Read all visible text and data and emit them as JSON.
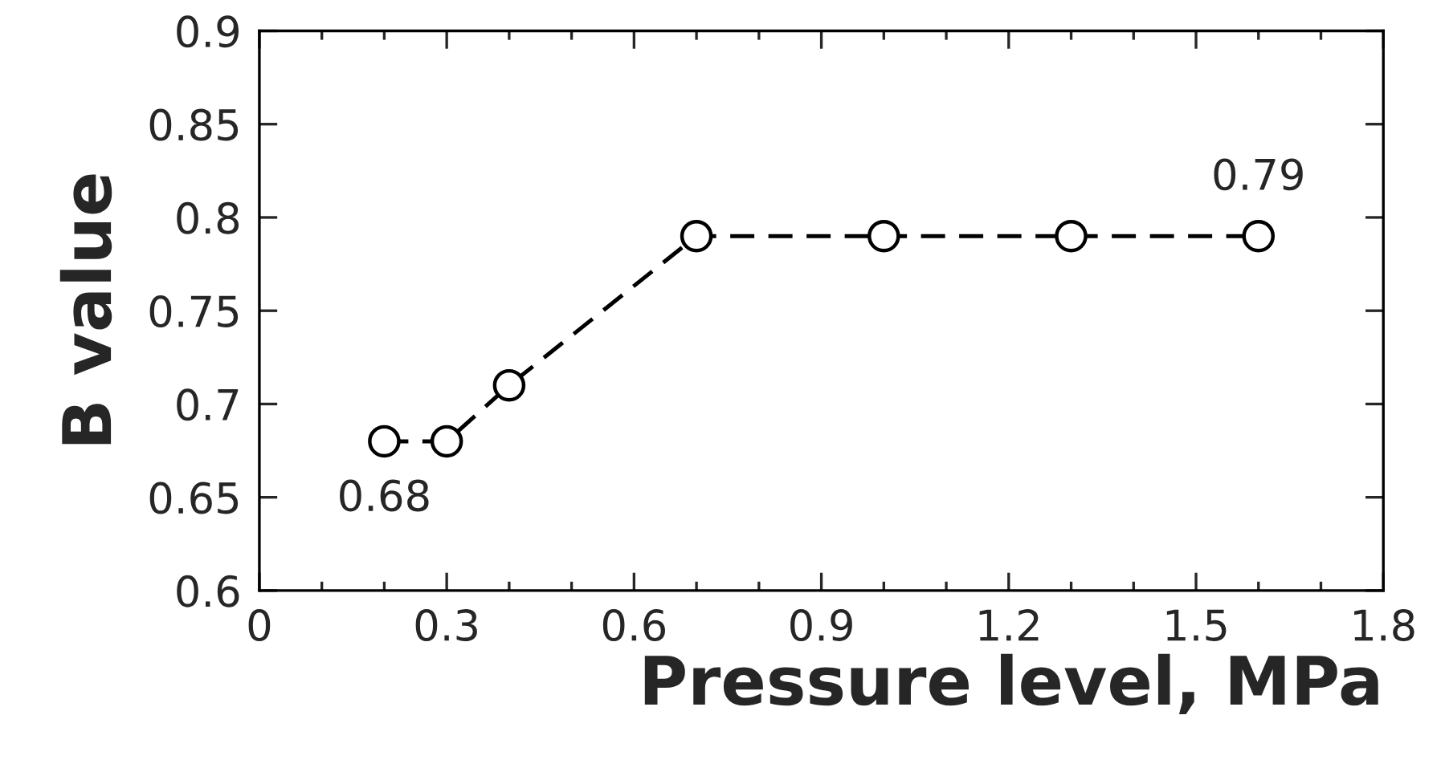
{
  "chart_data": {
    "type": "line",
    "xlabel": "Pressure level, MPa",
    "ylabel": "B value",
    "x": [
      0.2,
      0.3,
      0.4,
      0.7,
      1.0,
      1.3,
      1.6
    ],
    "series": [
      {
        "color": "#000000",
        "values": [
          0.68,
          0.68,
          0.71,
          0.79,
          0.79,
          0.79,
          0.79
        ]
      }
    ],
    "marker": "circle",
    "line_style": "dashed",
    "grid": false,
    "legend": false,
    "xlim": [
      0,
      1.8
    ],
    "ylim": [
      0.6,
      0.9
    ],
    "xticks": [
      0,
      {
        "value": 0.1,
        "label": null
      },
      {
        "value": 0.2,
        "label": null
      },
      0.3,
      {
        "value": 0.4,
        "label": null
      },
      {
        "value": 0.5,
        "label": null
      },
      0.6,
      {
        "value": 0.7,
        "label": null
      },
      {
        "value": 0.8,
        "label": null
      },
      0.9,
      {
        "value": 1.0,
        "label": null
      },
      {
        "value": 1.1,
        "label": null
      },
      1.2,
      {
        "value": 1.3,
        "label": null
      },
      {
        "value": 1.4,
        "label": null
      },
      1.5,
      {
        "value": 1.6,
        "label": null
      },
      {
        "value": 1.7,
        "label": null
      },
      1.8
    ],
    "yticks": [
      0.6,
      0.65,
      0.7,
      0.75,
      0.8,
      0.85,
      0.9
    ],
    "annotations": [
      {
        "text": "0.68",
        "x": 0.2,
        "y": 0.68
      },
      {
        "text": "0.79",
        "x": 1.6,
        "y": 0.79
      }
    ]
  }
}
